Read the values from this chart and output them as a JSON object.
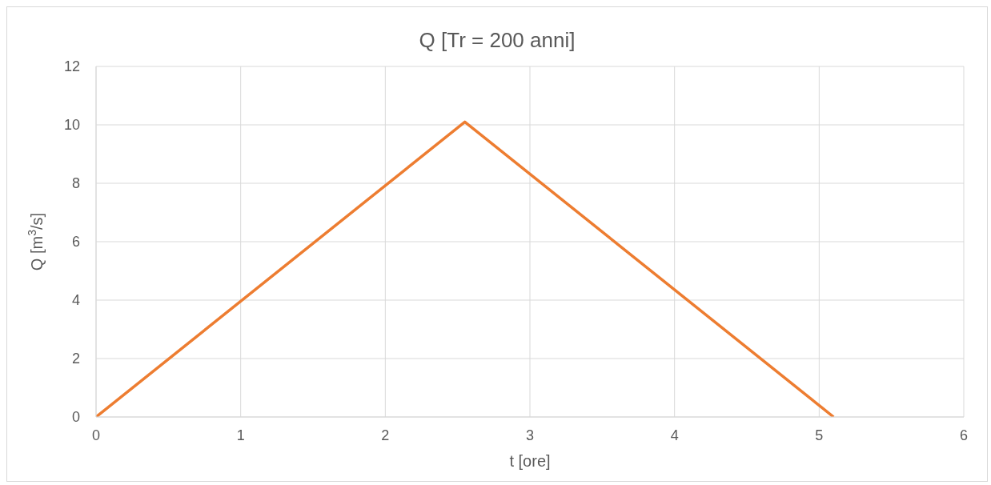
{
  "chart_data": {
    "type": "line",
    "title": "Q [Tr = 200 anni]",
    "xlabel": "t [ore]",
    "ylabel": "Q [m$^{3}$/s]",
    "x": [
      0,
      2.55,
      5.1
    ],
    "series": [
      {
        "color": "#ed7d31",
        "values": [
          0,
          10.1,
          0
        ]
      }
    ],
    "xlim": [
      0,
      6
    ],
    "xticks": [
      0,
      1,
      2,
      3,
      4,
      5,
      6
    ],
    "ylim": [
      0,
      12
    ],
    "yticks": [
      0,
      2,
      4,
      6,
      8,
      10,
      12
    ],
    "grid": true,
    "legend": false,
    "marker": "none",
    "line_style": "solid"
  }
}
